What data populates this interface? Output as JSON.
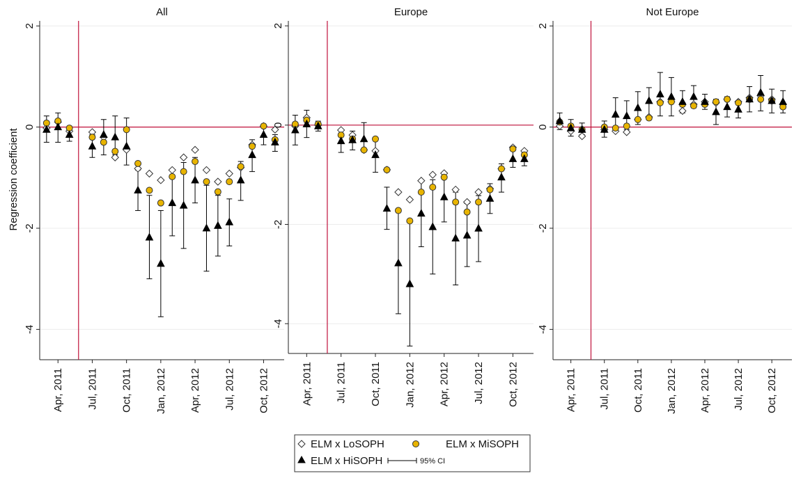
{
  "figure": {
    "ylabel": "Regression coefficient",
    "legend": {
      "lo_label": "ELM x LoSOPH",
      "mi_label": "ELM x MiSOPH",
      "hi_label": "ELM x HiSOPH",
      "ci_label": "95% CI"
    }
  },
  "colors": {
    "refline": "#c0103a",
    "mi_fill": "#e8b400",
    "lo_fill": "#ffffff",
    "hi_fill": "#000000",
    "grid": "#ececec"
  },
  "chart_data": [
    {
      "type": "scatter",
      "title": "All",
      "x_tick_labels": [
        "Apr, 2011",
        "Jul, 2011",
        "Oct, 2011",
        "Jan, 2012",
        "Apr, 2012",
        "Jul, 2012",
        "Oct, 2012"
      ],
      "x_tick_months": [
        3,
        6,
        9,
        12,
        15,
        18,
        21
      ],
      "y_ticks": [
        2,
        0,
        -2,
        -4
      ],
      "ylim": [
        -4.6,
        2.1
      ],
      "xlim": [
        1.4,
        22.8
      ],
      "vline_month": 4.8,
      "hline": 0,
      "months": [
        2,
        3,
        4,
        6,
        7,
        8,
        9,
        10,
        11,
        12,
        13,
        14,
        15,
        16,
        17,
        18,
        19,
        20,
        21,
        22
      ],
      "series": [
        {
          "name": "ELM x LoSOPH",
          "marker": "diamond",
          "values": [
            -0.02,
            0.1,
            -0.08,
            -0.1,
            -0.2,
            -0.6,
            -0.45,
            -0.82,
            -0.92,
            -1.05,
            -0.85,
            -0.6,
            -0.45,
            -0.85,
            -1.08,
            -0.92,
            -0.8,
            -0.35,
            0.02,
            -0.05
          ]
        },
        {
          "name": "ELM x MiSOPH",
          "marker": "circle",
          "values": [
            0.08,
            0.12,
            -0.02,
            -0.2,
            -0.3,
            -0.48,
            -0.05,
            -0.72,
            -1.25,
            -1.5,
            -0.98,
            -0.88,
            -0.68,
            -1.08,
            -1.28,
            -1.08,
            -0.78,
            -0.38,
            0.02,
            -0.25
          ]
        },
        {
          "name": "ELM x HiSOPH",
          "marker": "triangle",
          "values": [
            -0.05,
            0.0,
            -0.15,
            -0.38,
            -0.15,
            -0.2,
            -0.38,
            -1.25,
            -2.18,
            -2.7,
            -1.5,
            -1.55,
            -1.05,
            -2.0,
            -1.95,
            -1.88,
            -1.05,
            -0.55,
            -0.15,
            -0.3
          ]
        }
      ],
      "ci": [
        {
          "lower": [
            -0.3,
            -0.3,
            -0.28,
            -0.6,
            -0.55,
            -0.55,
            -0.75,
            -1.65,
            -3.0,
            -3.75,
            -2.15,
            -2.4,
            -1.5,
            -2.85,
            -2.55,
            -2.35,
            -1.45,
            -0.88,
            -0.35,
            -0.48
          ],
          "upper": [
            0.22,
            0.28,
            -0.02,
            -0.15,
            0.15,
            0.22,
            0.18,
            -0.85,
            -1.35,
            -1.65,
            -0.85,
            -0.7,
            -0.6,
            -1.15,
            -1.35,
            -1.42,
            -0.68,
            -0.25,
            0.05,
            -0.15
          ]
        }
      ]
    },
    {
      "type": "scatter",
      "title": "Europe",
      "x_tick_labels": [
        "Apr, 2011",
        "Jul, 2011",
        "Oct, 2011",
        "Jan, 2012",
        "Apr, 2012",
        "Jul, 2012",
        "Oct, 2012"
      ],
      "x_tick_months": [
        3,
        6,
        9,
        12,
        15,
        18,
        21
      ],
      "y_ticks": [
        2,
        0,
        -2,
        -4
      ],
      "ylim": [
        -4.6,
        2.1
      ],
      "xlim": [
        1.4,
        22.8
      ],
      "vline_month": 4.8,
      "hline": 0,
      "months": [
        2,
        3,
        4,
        6,
        7,
        8,
        9,
        10,
        11,
        12,
        13,
        14,
        15,
        16,
        17,
        18,
        19,
        20,
        21,
        22
      ],
      "series": [
        {
          "name": "ELM x LoSOPH",
          "marker": "diamond",
          "values": [
            -0.02,
            0.15,
            0.0,
            -0.1,
            -0.2,
            -0.5,
            -0.52,
            -0.9,
            -1.35,
            -1.5,
            -1.12,
            -1.0,
            -0.97,
            -1.3,
            -1.55,
            -1.35,
            -1.28,
            -0.88,
            -0.45,
            -0.52
          ]
        },
        {
          "name": "ELM x MiSOPH",
          "marker": "circle",
          "values": [
            0.02,
            0.1,
            0.02,
            -0.2,
            -0.28,
            -0.5,
            -0.28,
            -0.9,
            -1.72,
            -1.93,
            -1.35,
            -1.25,
            -1.05,
            -1.55,
            -1.75,
            -1.55,
            -1.3,
            -0.88,
            -0.48,
            -0.6
          ]
        },
        {
          "name": "ELM x HiSOPH",
          "marker": "triangle",
          "values": [
            -0.1,
            0.02,
            -0.02,
            -0.32,
            -0.3,
            -0.28,
            -0.6,
            -1.68,
            -2.78,
            -3.2,
            -1.78,
            -2.05,
            -1.45,
            -2.28,
            -2.22,
            -2.08,
            -1.48,
            -1.05,
            -0.68,
            -0.68
          ]
        }
      ],
      "ci": [
        {
          "lower": [
            -0.4,
            -0.25,
            -0.12,
            -0.55,
            -0.5,
            -0.5,
            -0.95,
            -2.1,
            -3.8,
            -4.45,
            -2.45,
            -3.0,
            -1.95,
            -3.22,
            -2.85,
            -2.75,
            -1.78,
            -1.35,
            -0.85,
            -0.82
          ],
          "upper": [
            0.2,
            0.3,
            0.08,
            -0.08,
            -0.12,
            0.05,
            -0.25,
            -1.25,
            -1.75,
            -1.95,
            -1.12,
            -1.1,
            -0.95,
            -1.35,
            -1.58,
            -1.42,
            -1.18,
            -0.78,
            -0.5,
            -0.55
          ]
        }
      ]
    },
    {
      "type": "scatter",
      "title": "Not Europe",
      "x_tick_labels": [
        "Apr, 2011",
        "Jul, 2011",
        "Oct, 2011",
        "Jan, 2012",
        "Apr, 2012",
        "Jul, 2012",
        "Oct, 2012"
      ],
      "x_tick_months": [
        3,
        6,
        9,
        12,
        15,
        18,
        21
      ],
      "y_ticks": [
        2,
        0,
        -2,
        -4
      ],
      "ylim": [
        -4.6,
        2.1
      ],
      "xlim": [
        1.4,
        22.8
      ],
      "vline_month": 4.8,
      "hline": 0,
      "months": [
        2,
        3,
        4,
        6,
        7,
        8,
        9,
        10,
        11,
        12,
        13,
        14,
        15,
        16,
        17,
        18,
        19,
        20,
        21,
        22
      ],
      "series": [
        {
          "name": "ELM x LoSOPH",
          "marker": "diamond",
          "values": [
            0.02,
            -0.08,
            -0.18,
            -0.05,
            -0.08,
            -0.1,
            0.15,
            0.2,
            0.5,
            0.5,
            0.32,
            0.45,
            0.5,
            0.48,
            0.55,
            0.5,
            0.58,
            0.62,
            0.55,
            0.45
          ]
        },
        {
          "name": "ELM x MiSOPH",
          "marker": "circle",
          "values": [
            0.1,
            0.02,
            -0.05,
            0.0,
            -0.02,
            0.02,
            0.15,
            0.18,
            0.48,
            0.5,
            0.45,
            0.42,
            0.45,
            0.5,
            0.55,
            0.48,
            0.55,
            0.55,
            0.52,
            0.4
          ]
        },
        {
          "name": "ELM x HiSOPH",
          "marker": "triangle",
          "values": [
            0.12,
            -0.02,
            -0.05,
            -0.05,
            0.25,
            0.22,
            0.38,
            0.52,
            0.65,
            0.6,
            0.5,
            0.6,
            0.5,
            0.3,
            0.4,
            0.35,
            0.55,
            0.68,
            0.52,
            0.5
          ]
        }
      ],
      "ci": [
        {
          "lower": [
            -0.05,
            -0.18,
            -0.15,
            -0.2,
            -0.05,
            -0.05,
            0.05,
            0.2,
            0.22,
            0.22,
            0.28,
            0.38,
            0.35,
            0.05,
            0.2,
            0.18,
            0.3,
            0.32,
            0.28,
            0.28
          ],
          "upper": [
            0.28,
            0.15,
            0.08,
            0.12,
            0.58,
            0.52,
            0.7,
            0.78,
            1.08,
            0.98,
            0.72,
            0.82,
            0.65,
            0.55,
            0.6,
            0.52,
            0.8,
            1.02,
            0.75,
            0.72
          ]
        }
      ]
    }
  ]
}
